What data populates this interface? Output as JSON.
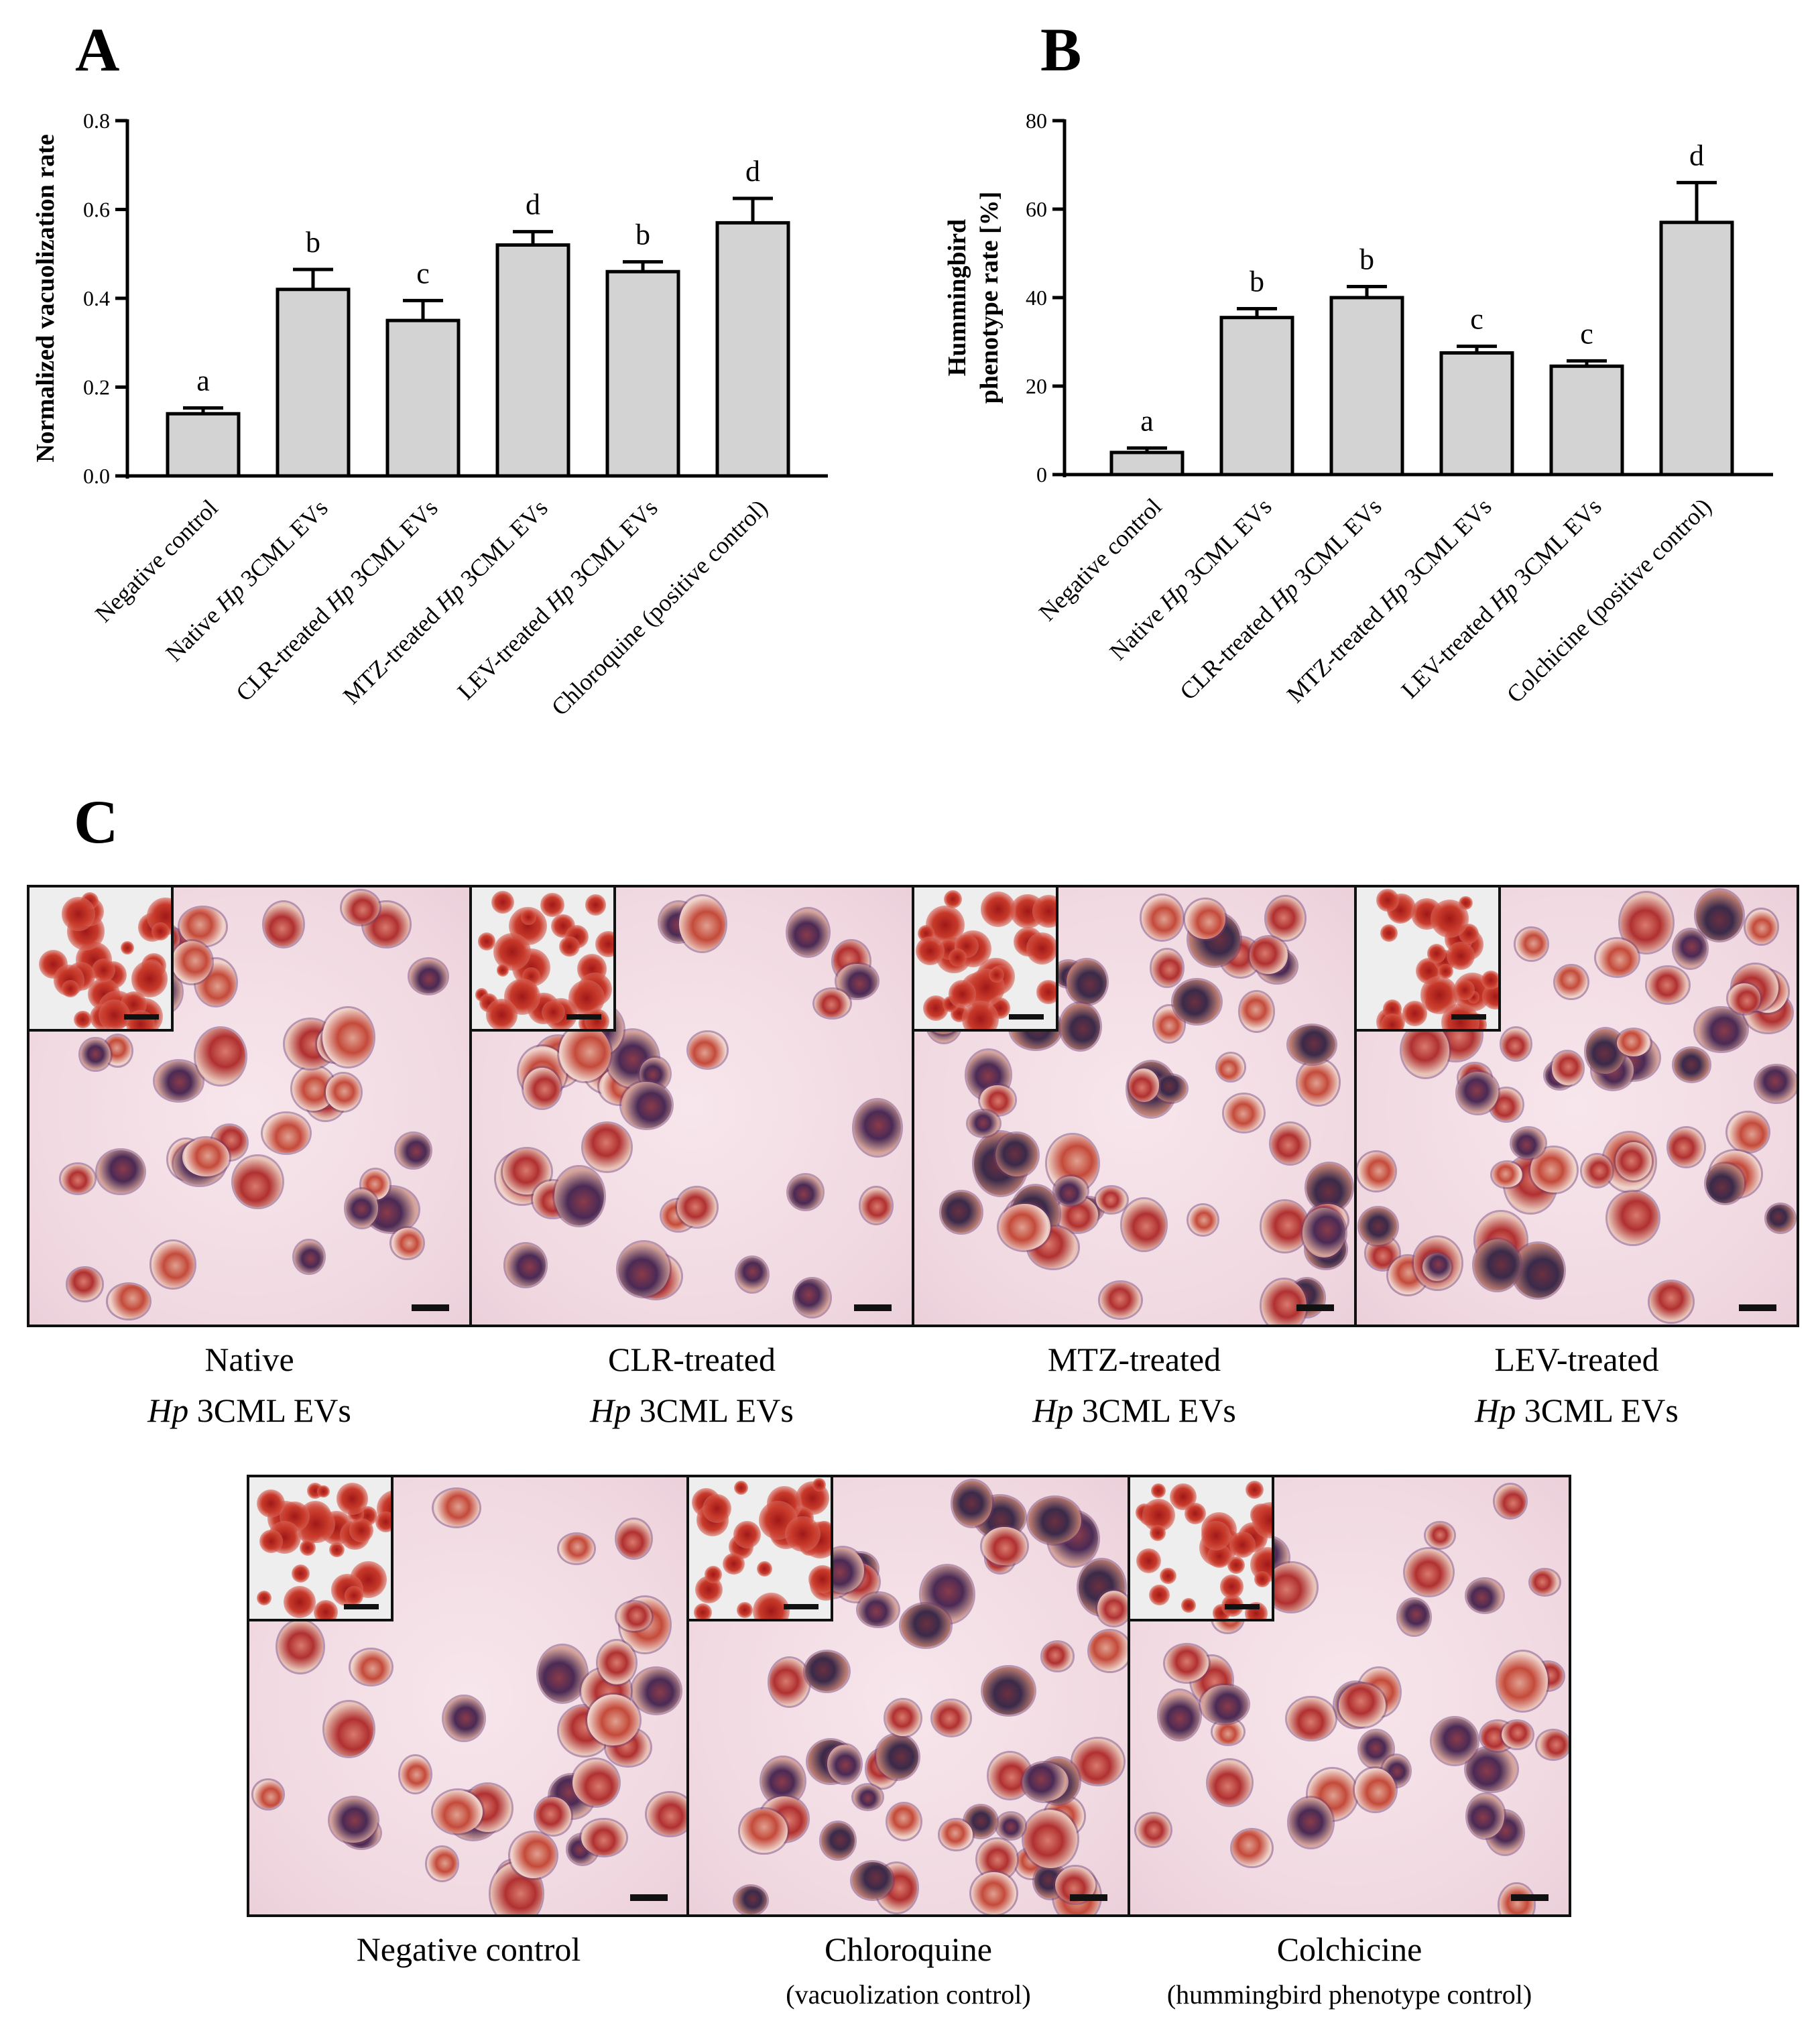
{
  "panels": {
    "a_label": "A",
    "b_label": "B",
    "c_label": "C"
  },
  "chart_data": [
    {
      "type": "bar",
      "panel": "A",
      "title": "",
      "xlabel": "",
      "ylabel": "Normalized vacuolization rate",
      "ylim": [
        0,
        0.8
      ],
      "yticks": [
        "0.0",
        "0.2",
        "0.4",
        "0.6",
        "0.8"
      ],
      "categories": [
        {
          "label": "Negative control"
        },
        {
          "label": "Native Hp 3CML EVs"
        },
        {
          "label": "CLR-treated Hp 3CML EVs"
        },
        {
          "label": "MTZ-treated Hp 3CML EVs"
        },
        {
          "label": "LEV-treated Hp 3CML EVs"
        },
        {
          "label": "Chloroquine (positive control)"
        }
      ],
      "values": [
        0.14,
        0.42,
        0.35,
        0.52,
        0.46,
        0.57
      ],
      "errors": [
        0.013,
        0.045,
        0.045,
        0.03,
        0.022,
        0.055
      ],
      "letters": [
        "a",
        "b",
        "c",
        "d",
        "b",
        "d"
      ],
      "bar_color": "#d3d3d3"
    },
    {
      "type": "bar",
      "panel": "B",
      "title": "",
      "xlabel": "",
      "ylabel": "Hummingbird phenotype rate [%]",
      "ylim": [
        0,
        80
      ],
      "yticks": [
        "0",
        "20",
        "40",
        "60",
        "80"
      ],
      "categories": [
        {
          "label": "Negative control"
        },
        {
          "label": "Native Hp 3CML EVs"
        },
        {
          "label": "CLR-treated Hp 3CML EVs"
        },
        {
          "label": "MTZ-treated Hp 3CML EVs"
        },
        {
          "label": "LEV-treated Hp 3CML EVs"
        },
        {
          "label": "Colchicine (positive control)"
        }
      ],
      "values": [
        5,
        35.5,
        40,
        27.5,
        24.5,
        57
      ],
      "errors": [
        1.0,
        2.0,
        2.5,
        1.5,
        1.2,
        9.0
      ],
      "letters": [
        "a",
        "b",
        "b",
        "c",
        "c",
        "d"
      ],
      "bar_color": "#d3d3d3"
    }
  ],
  "micrographs": {
    "row1": [
      {
        "line1": "Native",
        "italic": "Hp",
        "rest": "3CML EVs"
      },
      {
        "line1": "CLR-treated",
        "italic": "Hp",
        "rest": "3CML EVs"
      },
      {
        "line1": "MTZ-treated",
        "italic": "Hp",
        "rest": "3CML EVs"
      },
      {
        "line1": "LEV-treated",
        "italic": "Hp",
        "rest": "3CML EVs"
      }
    ],
    "row2": [
      {
        "line1": "Negative control",
        "sub": ""
      },
      {
        "line1": "Chloroquine",
        "sub": "(vacuolization control)"
      },
      {
        "line1": "Colchicine",
        "sub": "(hummingbird phenotype control)"
      }
    ]
  }
}
